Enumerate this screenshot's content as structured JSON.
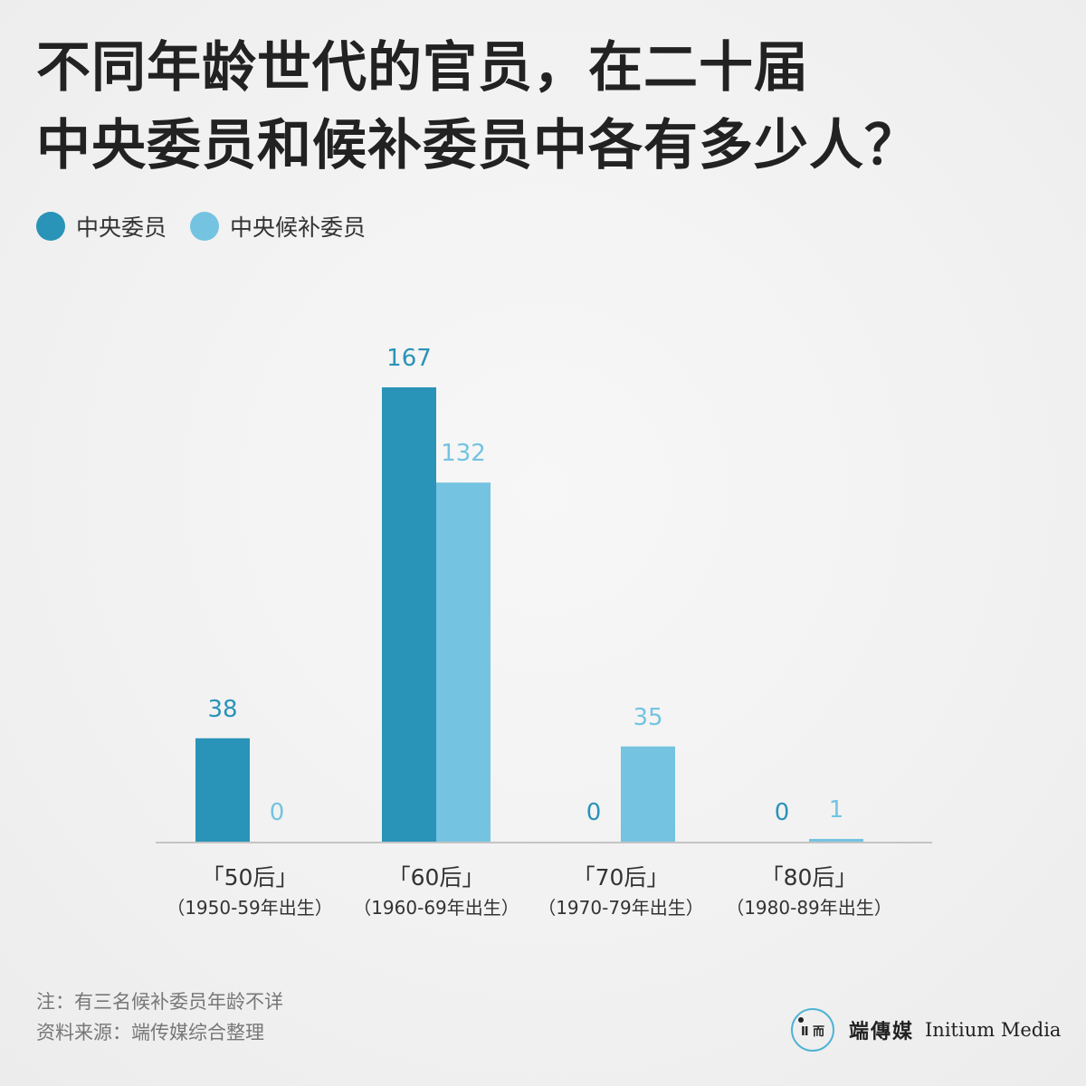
{
  "title": {
    "line1": "不同年龄世代的官员，在二十届",
    "line2": "中央委员和候补委员中各有多少人？"
  },
  "legend": [
    {
      "label": "中央委员",
      "color": "#2a93b8"
    },
    {
      "label": "中央候补委员",
      "color": "#74c3e1"
    }
  ],
  "chart_data": {
    "type": "bar",
    "categories": [
      "「50后」",
      "「60后」",
      "「70后」",
      "「80后」"
    ],
    "category_sublabels": [
      "（1950-59年出生）",
      "（1960-69年出生）",
      "（1970-79年出生）",
      "（1980-89年出生）"
    ],
    "series": [
      {
        "name": "中央委员",
        "values": [
          38,
          167,
          0,
          0
        ],
        "color": "#2a93b8"
      },
      {
        "name": "中央候补委员",
        "values": [
          0,
          132,
          35,
          1
        ],
        "color": "#74c3e1"
      }
    ],
    "data_labels": [
      [
        "38",
        "167",
        "0",
        "0"
      ],
      [
        "0",
        "132",
        "35",
        "1"
      ]
    ],
    "ylim": [
      0,
      190
    ],
    "grid": false,
    "legend_position": "top-left"
  },
  "footnotes": {
    "note": "注：有三名候补委员年龄不详",
    "source": "资料来源：端传媒综合整理"
  },
  "brand": {
    "logo_text": "Ⅱ 而",
    "name_cn": "端傳媒",
    "name_en": "Initium Media"
  }
}
